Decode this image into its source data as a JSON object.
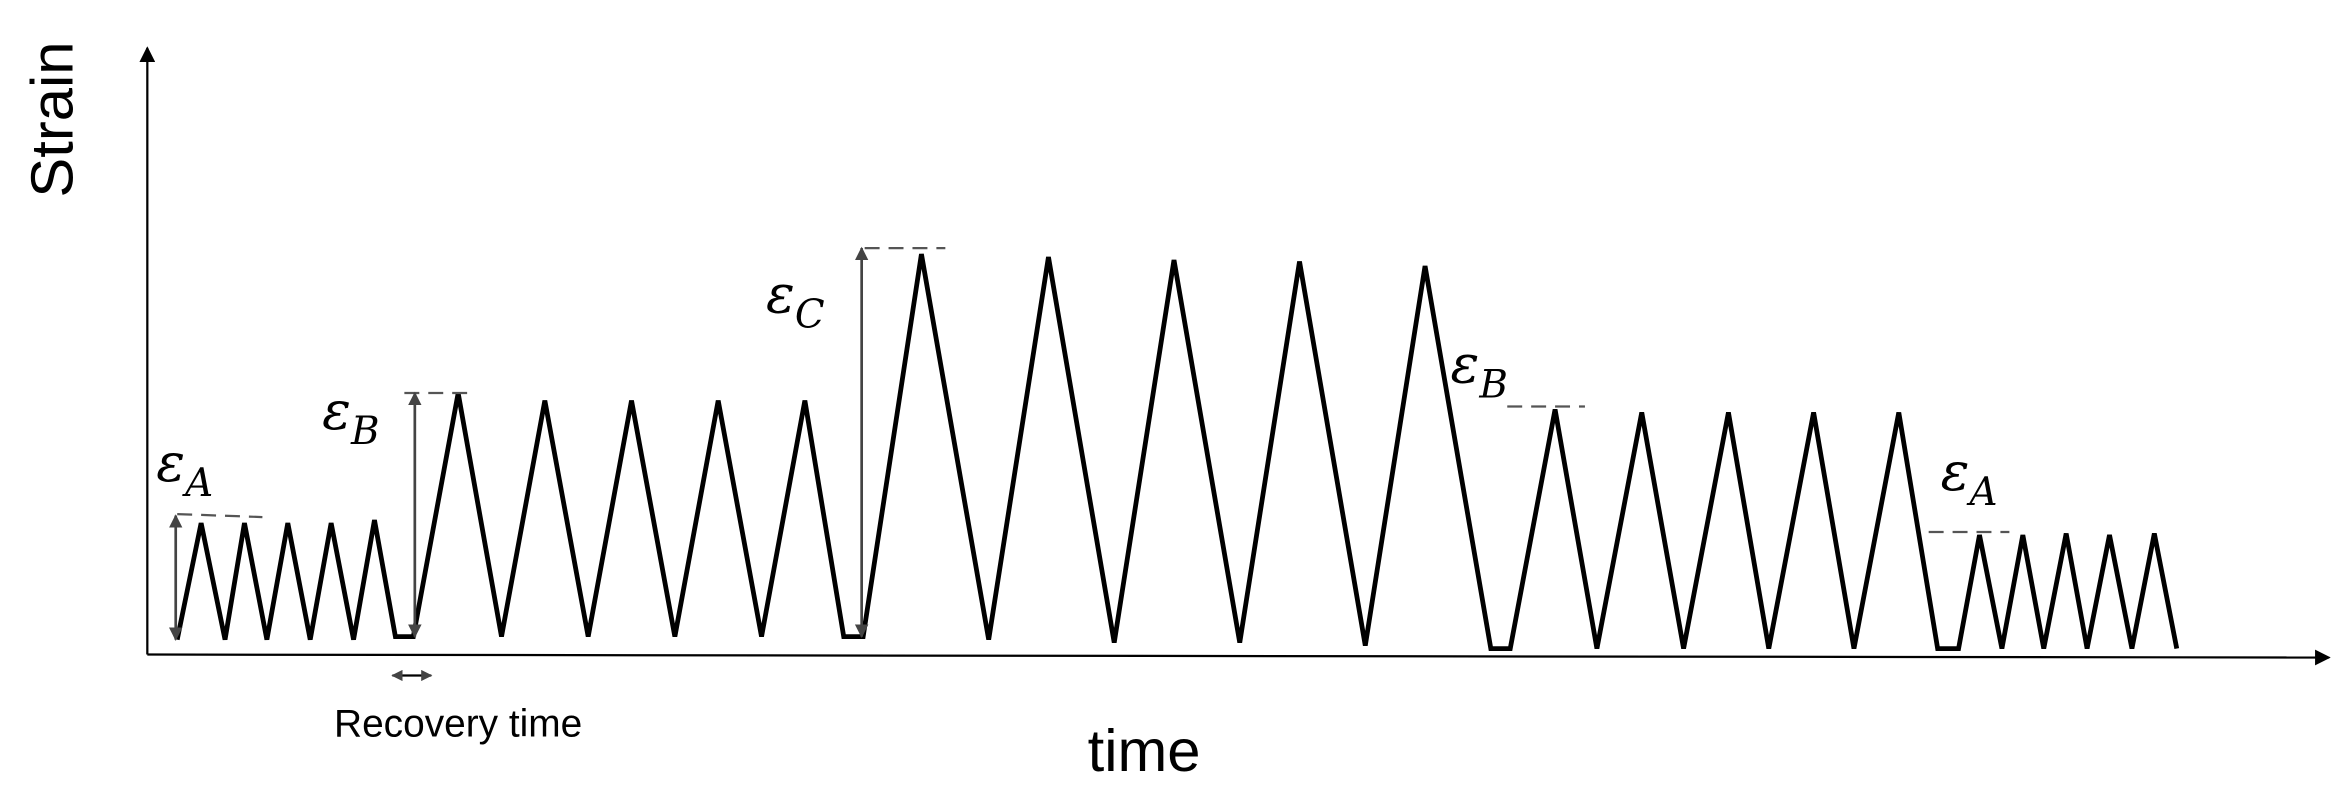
{
  "axes": {
    "y_label": "Strain",
    "x_label": "time"
  },
  "annotations": {
    "recovery": "Recovery time",
    "eps_a_first": {
      "symbol": "ε",
      "subscript": "A"
    },
    "eps_b_first": {
      "symbol": "ε",
      "subscript": "B"
    },
    "eps_c": {
      "symbol": "ε",
      "subscript": "C"
    },
    "eps_b_second": {
      "symbol": "ε",
      "subscript": "B"
    },
    "eps_a_second": {
      "symbol": "ε",
      "subscript": "A"
    }
  }
}
